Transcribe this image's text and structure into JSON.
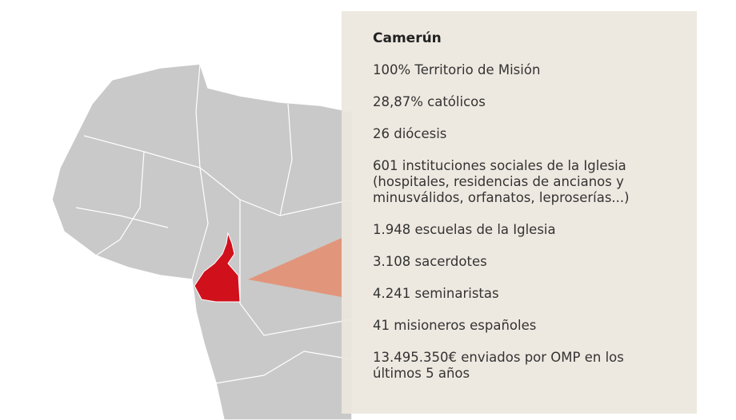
{
  "panel": {
    "title": "Camerún",
    "items": [
      "100% Territorio de Misión",
      "28,87% católicos",
      "26 diócesis",
      "601 instituciones sociales de la Iglesia (hospitales, residencias de ancianos y minusválidos, orfanatos, leproserías...)",
      "1.948 escuelas de la Iglesia",
      "3.108 sacerdotes",
      "4.241 seminaristas",
      "41 misioneros españoles",
      "13.495.350€ enviados por OMP en los últimos 5 años"
    ]
  }
}
